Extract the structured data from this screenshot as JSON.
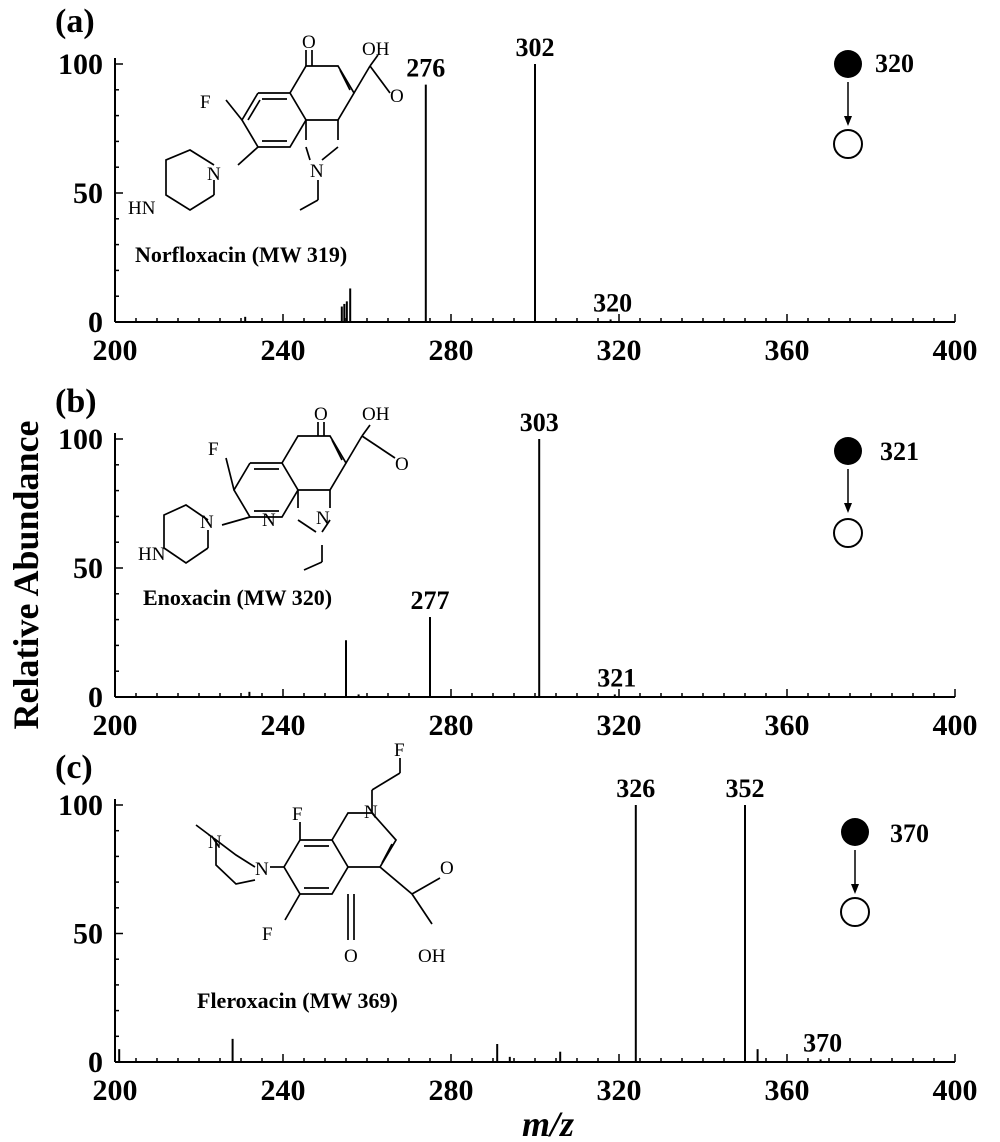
{
  "figure": {
    "ylabel": "Relative Abundance",
    "xlabel": "m/z"
  },
  "chart_data": [
    {
      "type": "bar",
      "panel_label": "(a)",
      "compound": "Norfloxacin  (MW 319)",
      "precursor": "320",
      "xlim": [
        200,
        400
      ],
      "ylim": [
        0,
        100
      ],
      "xticks": [
        "200",
        "240",
        "280",
        "320",
        "360",
        "400"
      ],
      "yticks": [
        "0",
        "50",
        "100"
      ],
      "atoms": {
        "o": "O",
        "oh": "OH",
        "o2": "O",
        "f": "F",
        "n1": "N",
        "n2": "N",
        "hn": "HN"
      },
      "peaks": [
        {
          "mz": 231,
          "value": 2
        },
        {
          "mz": 254,
          "value": 6
        },
        {
          "mz": 254.6,
          "value": 7
        },
        {
          "mz": 255.2,
          "value": 8
        },
        {
          "mz": 256,
          "value": 13
        },
        {
          "mz": 274,
          "value": 92,
          "label": "276"
        },
        {
          "mz": 300,
          "value": 100,
          "label": "302"
        },
        {
          "mz": 318,
          "value": 1,
          "label": "320"
        }
      ]
    },
    {
      "type": "bar",
      "panel_label": "(b)",
      "compound": "Enoxacin  (MW 320)",
      "precursor": "321",
      "xlim": [
        200,
        400
      ],
      "ylim": [
        0,
        100
      ],
      "xticks": [
        "200",
        "240",
        "280",
        "320",
        "360",
        "400"
      ],
      "yticks": [
        "0",
        "50",
        "100"
      ],
      "atoms": {
        "o": "O",
        "oh": "OH",
        "o2": "O",
        "f": "F",
        "n1": "N",
        "n2": "N",
        "n3": "N",
        "hn": "HN"
      },
      "peaks": [
        {
          "mz": 232,
          "value": 2
        },
        {
          "mz": 255,
          "value": 22
        },
        {
          "mz": 258,
          "value": 1
        },
        {
          "mz": 275,
          "value": 31,
          "label": "277"
        },
        {
          "mz": 301,
          "value": 100,
          "label": "303"
        },
        {
          "mz": 319,
          "value": 1,
          "label": "321"
        }
      ]
    },
    {
      "type": "bar",
      "panel_label": "(c)",
      "compound": "Fleroxacin  (MW 369)",
      "precursor": "370",
      "xlim": [
        200,
        400
      ],
      "ylim": [
        0,
        100
      ],
      "xticks": [
        "200",
        "240",
        "280",
        "320",
        "360",
        "400"
      ],
      "yticks": [
        "0",
        "50",
        "100"
      ],
      "atoms": {
        "f_top": "F",
        "f1": "F",
        "f2": "F",
        "n_ring": "N",
        "n_pip1": "N",
        "n_pip2": "N",
        "o": "O",
        "o2": "O",
        "oh": "OH"
      },
      "peaks": [
        {
          "mz": 201,
          "value": 5
        },
        {
          "mz": 228,
          "value": 9
        },
        {
          "mz": 291,
          "value": 7
        },
        {
          "mz": 294,
          "value": 2
        },
        {
          "mz": 306,
          "value": 4
        },
        {
          "mz": 324,
          "value": 100,
          "label": "326"
        },
        {
          "mz": 350,
          "value": 100,
          "label": "352"
        },
        {
          "mz": 353,
          "value": 5
        },
        {
          "mz": 368,
          "value": 1,
          "label": "370"
        }
      ]
    }
  ]
}
